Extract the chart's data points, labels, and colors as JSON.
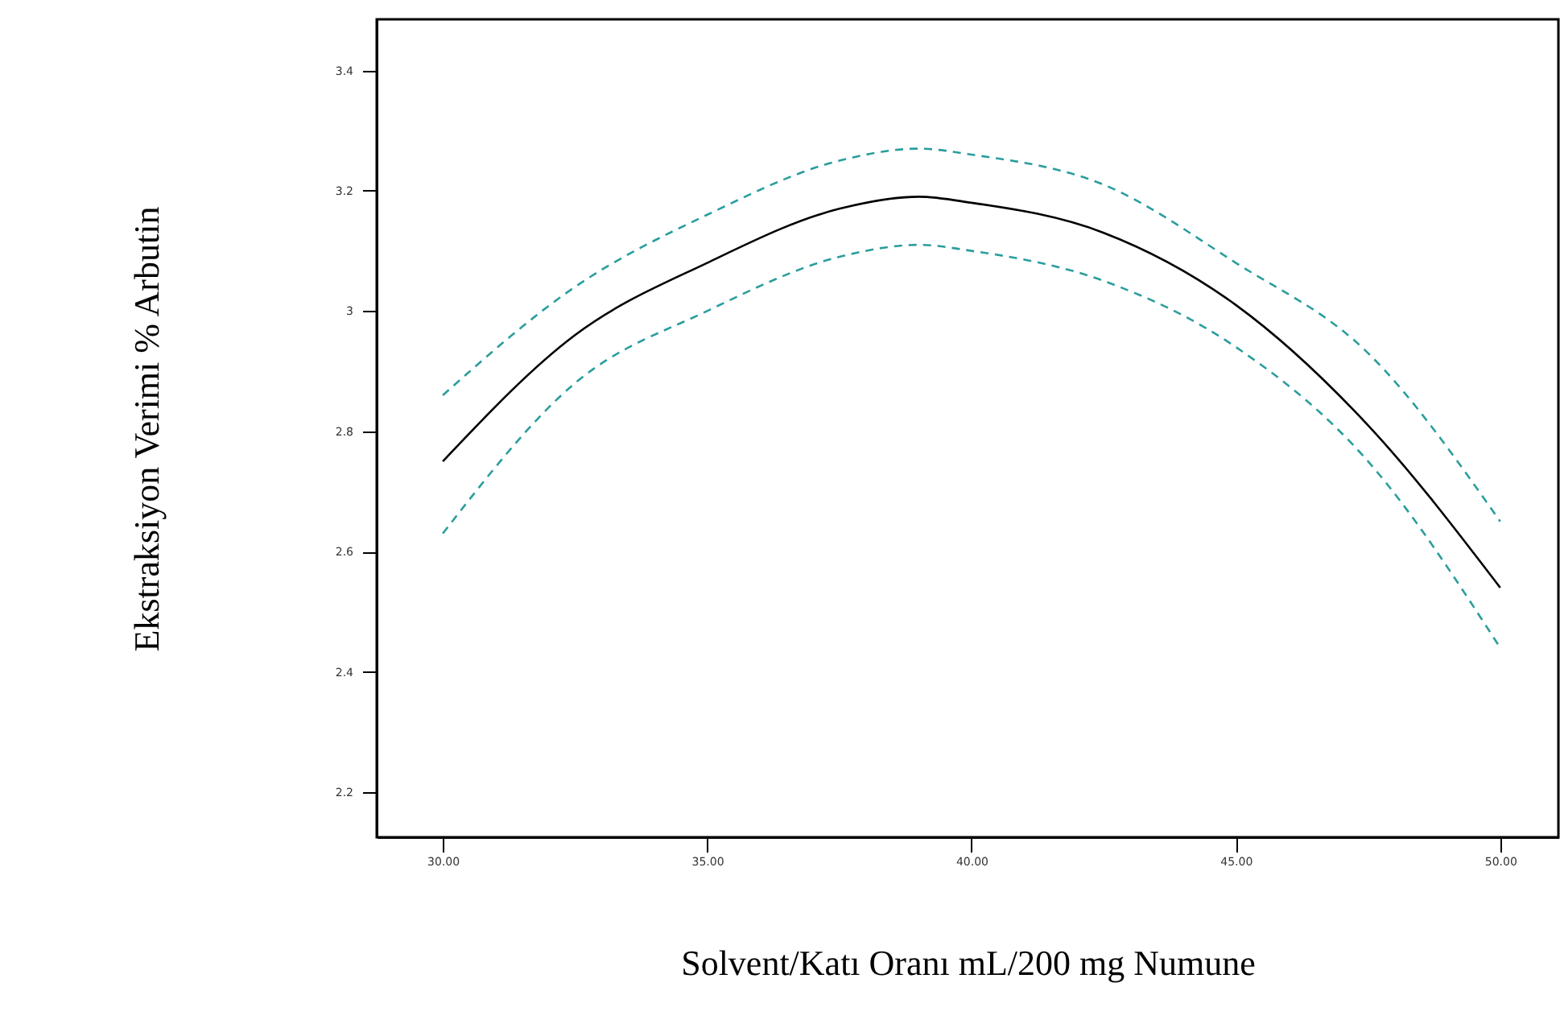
{
  "chart_data": {
    "type": "line",
    "xlabel": "Solvent/Katı Oranı mL/200 mg Numune",
    "ylabel": "Ekstraksiyon Verimi % Arbutin",
    "xlim": [
      28.75,
      51.1
    ],
    "ylim": [
      2.125,
      3.485
    ],
    "xticks": [
      {
        "value": 30,
        "label": "30.00"
      },
      {
        "value": 35,
        "label": "35.00"
      },
      {
        "value": 40,
        "label": "40.00"
      },
      {
        "value": 45,
        "label": "45.00"
      },
      {
        "value": 50,
        "label": "50.00"
      }
    ],
    "yticks": [
      2.2,
      2.4,
      2.6,
      2.8,
      3,
      3.2,
      3.4
    ],
    "grid": false,
    "marker": "none",
    "series": [
      {
        "color": "#2a9d9d",
        "line_style": "dashed",
        "x": [
          30,
          32.5,
          35,
          37.5,
          39,
          40,
          42.5,
          45,
          47.5,
          50
        ],
        "values": [
          2.86,
          3.04,
          3.16,
          3.25,
          3.27,
          3.26,
          3.21,
          3.08,
          2.93,
          2.65
        ]
      },
      {
        "color": "#000000",
        "line_style": "solid",
        "x": [
          30,
          32.5,
          35,
          37.5,
          39,
          40,
          42.5,
          45,
          47.5,
          50
        ],
        "values": [
          2.75,
          2.96,
          3.08,
          3.17,
          3.19,
          3.18,
          3.13,
          3.01,
          2.81,
          2.54
        ]
      },
      {
        "color": "#2a9d9d",
        "line_style": "dashed",
        "x": [
          30,
          32.5,
          35,
          37.5,
          39,
          40,
          42.5,
          45,
          47.5,
          50
        ],
        "values": [
          2.63,
          2.88,
          3.0,
          3.09,
          3.11,
          3.1,
          3.05,
          2.94,
          2.75,
          2.44
        ]
      }
    ]
  }
}
